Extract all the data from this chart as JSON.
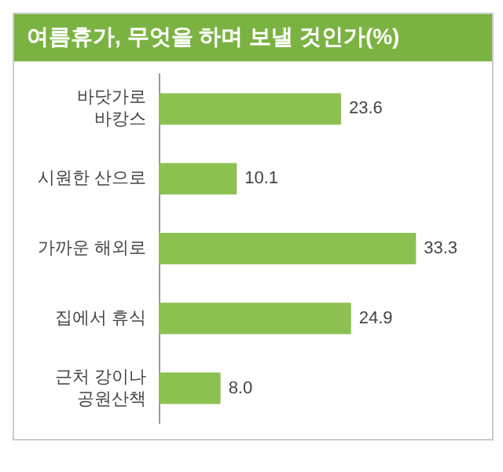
{
  "chart_data": {
    "type": "bar",
    "orientation": "horizontal",
    "title": "여름휴가, 무엇을 하며 보낼 것인가(%)",
    "categories": [
      "바닷가로\n바캉스",
      "시원한 산으로",
      "가까운 해외로",
      "집에서 휴식",
      "근처 강이나\n공원산책"
    ],
    "values": [
      23.6,
      10.1,
      33.3,
      24.9,
      8.0
    ],
    "value_labels": [
      "23.6",
      "10.1",
      "33.3",
      "24.9",
      "8.0"
    ],
    "color": "#8cc152",
    "grid": false
  }
}
